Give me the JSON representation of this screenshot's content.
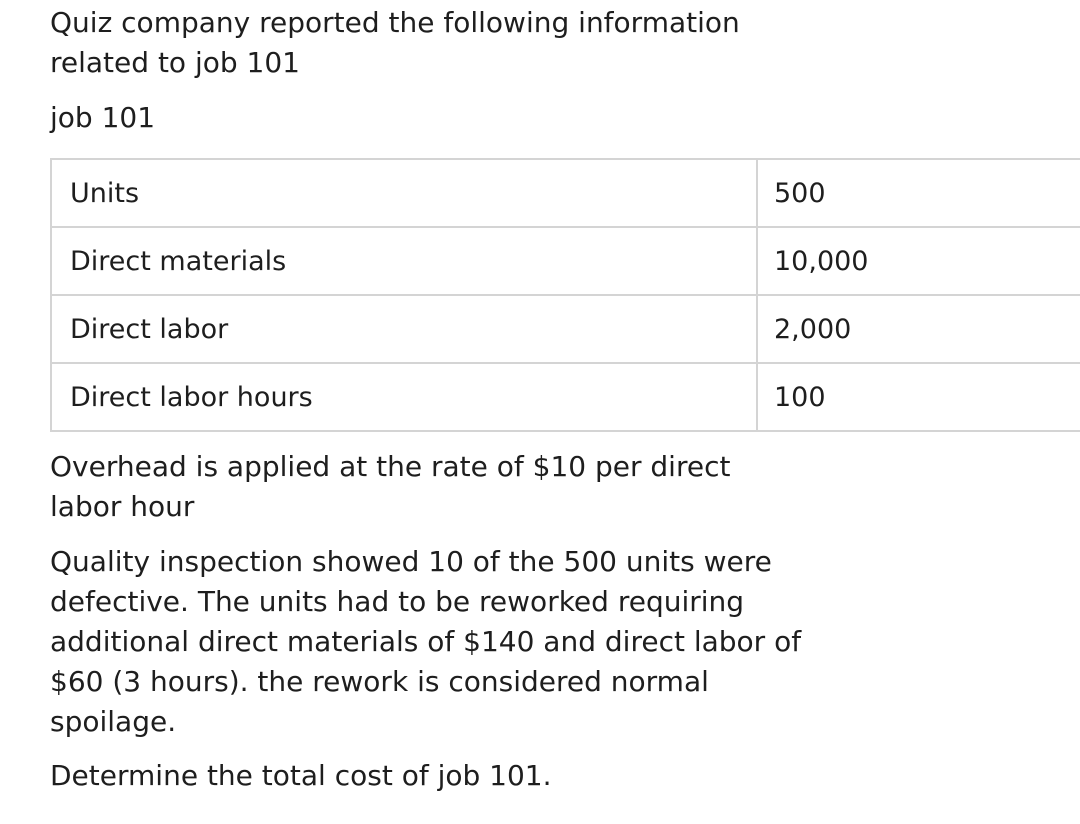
{
  "intro": {
    "line1": "Quiz company reported the following information",
    "line2": "related to job 101"
  },
  "job_label": "job 101",
  "table": {
    "rows": [
      {
        "label": "Units",
        "value": "500"
      },
      {
        "label": "Direct materials",
        "value": "10,000"
      },
      {
        "label": "Direct labor",
        "value": "2,000"
      },
      {
        "label": "Direct labor hours",
        "value": "100"
      }
    ]
  },
  "overhead": {
    "line1": "Overhead is applied at the rate of $10 per direct",
    "line2": "labor hour"
  },
  "quality": {
    "line1": "Quality inspection showed 10 of the 500 units were",
    "line2": "defective. The units had to be reworked requiring",
    "line3": "additional direct materials of $140 and direct labor of",
    "line4": "$60 (3 hours). the rework is considered normal",
    "line5": "spoilage."
  },
  "question": "Determine the total cost of job 101."
}
